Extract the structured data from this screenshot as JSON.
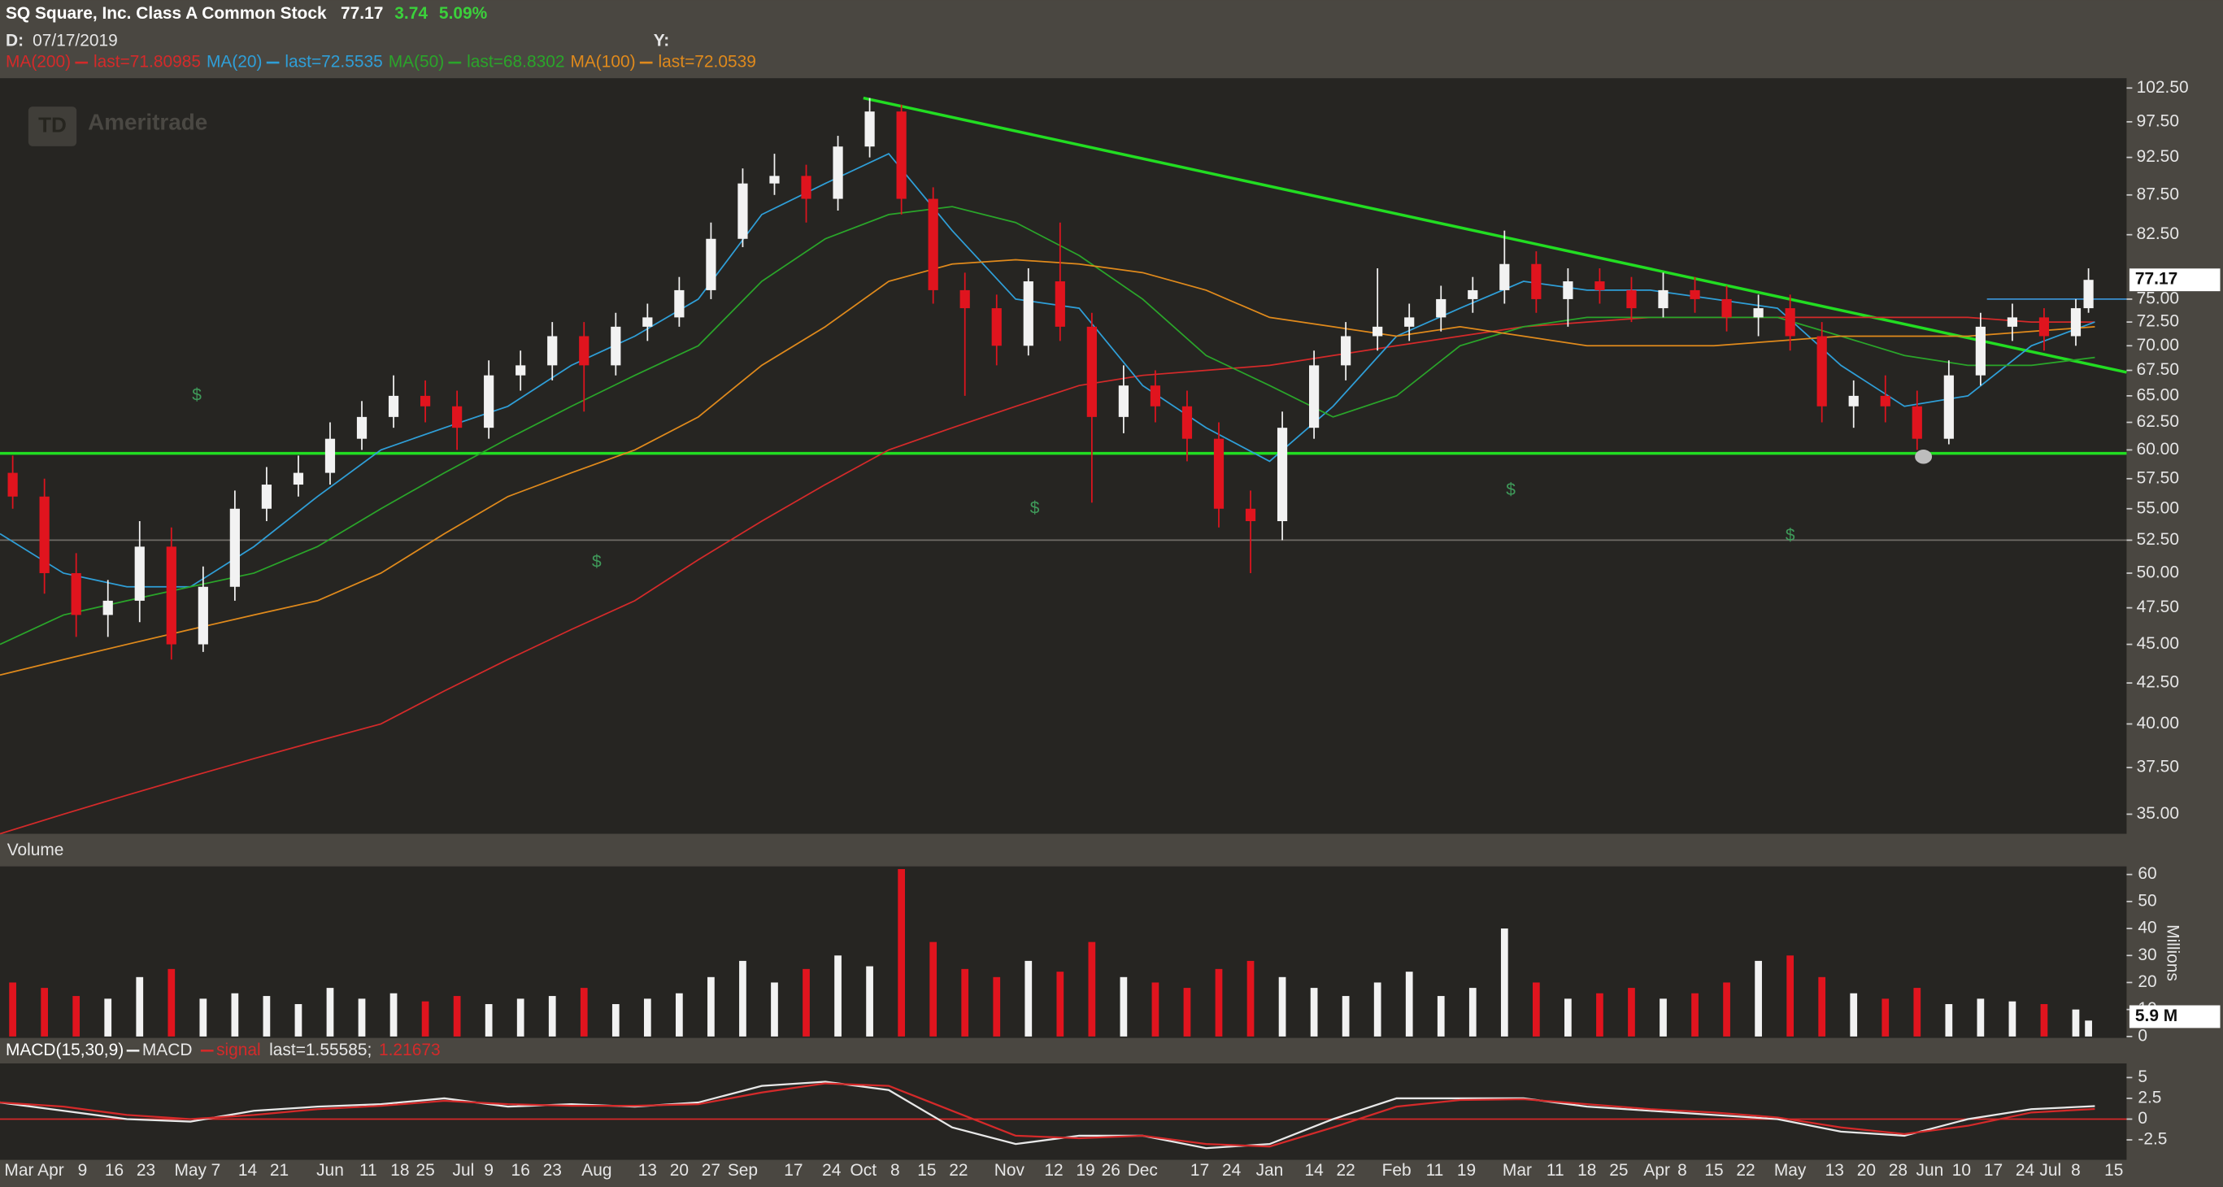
{
  "chart_data": {
    "type": "candlestick",
    "title": "SQ Square, Inc. Class A Common Stock",
    "change": "3.74",
    "change_pct": "5.09%",
    "change_color": "#3bd13b",
    "date_label": "D:",
    "date": "07/17/2019",
    "y_label": "Y:",
    "logo": "TD",
    "watermark": "Ameritrade",
    "log_scale": true,
    "xlim": [
      0,
      335
    ],
    "xticks": [
      {
        "value": 3,
        "label": "Mar"
      },
      {
        "value": 8,
        "label": "Apr"
      },
      {
        "value": 13,
        "label": "9"
      },
      {
        "value": 18,
        "label": "16"
      },
      {
        "value": 23,
        "label": "23"
      },
      {
        "value": 30,
        "label": "May"
      },
      {
        "value": 34,
        "label": "7"
      },
      {
        "value": 39,
        "label": "14"
      },
      {
        "value": 44,
        "label": "21"
      },
      {
        "value": 52,
        "label": "Jun"
      },
      {
        "value": 58,
        "label": "11"
      },
      {
        "value": 63,
        "label": "18"
      },
      {
        "value": 67,
        "label": "25"
      },
      {
        "value": 73,
        "label": "Jul"
      },
      {
        "value": 77,
        "label": "9"
      },
      {
        "value": 82,
        "label": "16"
      },
      {
        "value": 87,
        "label": "23"
      },
      {
        "value": 94,
        "label": "Aug"
      },
      {
        "value": 102,
        "label": "13"
      },
      {
        "value": 107,
        "label": "20"
      },
      {
        "value": 112,
        "label": "27"
      },
      {
        "value": 117,
        "label": "Sep"
      },
      {
        "value": 125,
        "label": "17"
      },
      {
        "value": 131,
        "label": "24"
      },
      {
        "value": 136,
        "label": "Oct"
      },
      {
        "value": 141,
        "label": "8"
      },
      {
        "value": 146,
        "label": "15"
      },
      {
        "value": 151,
        "label": "22"
      },
      {
        "value": 159,
        "label": "Nov"
      },
      {
        "value": 166,
        "label": "12"
      },
      {
        "value": 171,
        "label": "19"
      },
      {
        "value": 175,
        "label": "26"
      },
      {
        "value": 180,
        "label": "Dec"
      },
      {
        "value": 189,
        "label": "17"
      },
      {
        "value": 194,
        "label": "24"
      },
      {
        "value": 200,
        "label": "Jan"
      },
      {
        "value": 207,
        "label": "14"
      },
      {
        "value": 212,
        "label": "22"
      },
      {
        "value": 220,
        "label": "Feb"
      },
      {
        "value": 226,
        "label": "11"
      },
      {
        "value": 231,
        "label": "19"
      },
      {
        "value": 239,
        "label": "Mar"
      },
      {
        "value": 245,
        "label": "11"
      },
      {
        "value": 250,
        "label": "18"
      },
      {
        "value": 255,
        "label": "25"
      },
      {
        "value": 261,
        "label": "Apr"
      },
      {
        "value": 265,
        "label": "8"
      },
      {
        "value": 270,
        "label": "15"
      },
      {
        "value": 275,
        "label": "22"
      },
      {
        "value": 282,
        "label": "May"
      },
      {
        "value": 289,
        "label": "13"
      },
      {
        "value": 294,
        "label": "20"
      },
      {
        "value": 299,
        "label": "28"
      },
      {
        "value": 304,
        "label": "Jun"
      },
      {
        "value": 309,
        "label": "10"
      },
      {
        "value": 314,
        "label": "17"
      },
      {
        "value": 319,
        "label": "24"
      },
      {
        "value": 323,
        "label": "Jul"
      },
      {
        "value": 327,
        "label": "8"
      },
      {
        "value": 333,
        "label": "15"
      }
    ],
    "ylim": [
      34,
      104
    ],
    "yticks": [
      {
        "value": 35,
        "label": "35.00"
      },
      {
        "value": 37.5,
        "label": "37.50"
      },
      {
        "value": 40,
        "label": "40.00"
      },
      {
        "value": 42.5,
        "label": "42.50"
      },
      {
        "value": 45,
        "label": "45.00"
      },
      {
        "value": 47.5,
        "label": "47.50"
      },
      {
        "value": 50,
        "label": "50.00"
      },
      {
        "value": 52.5,
        "label": "52.50"
      },
      {
        "value": 55,
        "label": "55.00"
      },
      {
        "value": 57.5,
        "label": "57.50"
      },
      {
        "value": 60,
        "label": "60.00"
      },
      {
        "value": 62.5,
        "label": "62.50"
      },
      {
        "value": 65,
        "label": "65.00"
      },
      {
        "value": 67.5,
        "label": "67.50"
      },
      {
        "value": 70,
        "label": "70.00"
      },
      {
        "value": 72.5,
        "label": "72.50"
      },
      {
        "value": 75,
        "label": "75.00"
      },
      {
        "value": 82.5,
        "label": "82.50"
      },
      {
        "value": 87.5,
        "label": "87.50"
      },
      {
        "value": 92.5,
        "label": "92.50"
      },
      {
        "value": 97.5,
        "label": "97.50"
      },
      {
        "value": 102.5,
        "label": "102.50"
      }
    ],
    "up_color": "#f2f2f2",
    "down_color": "#e0141e",
    "x": [
      2,
      7,
      12,
      17,
      22,
      27,
      32,
      37,
      42,
      47,
      52,
      57,
      62,
      67,
      72,
      77,
      82,
      87,
      92,
      97,
      102,
      107,
      112,
      117,
      122,
      127,
      132,
      137,
      142,
      147,
      152,
      157,
      162,
      167,
      172,
      177,
      182,
      187,
      192,
      197,
      202,
      207,
      212,
      217,
      222,
      227,
      232,
      237,
      242,
      247,
      252,
      257,
      262,
      267,
      272,
      277,
      282,
      287,
      292,
      297,
      302,
      307,
      312,
      317,
      322,
      327,
      329
    ],
    "open": [
      58,
      56,
      50,
      47,
      48,
      52,
      45,
      49,
      55,
      57,
      58,
      61,
      63,
      65,
      64,
      62,
      67,
      68,
      71,
      68,
      72,
      73,
      76,
      82,
      89,
      90,
      87,
      94,
      99,
      87,
      76,
      74,
      70,
      77,
      72,
      63,
      66,
      64,
      61,
      55,
      54,
      62,
      68,
      71,
      72,
      73,
      75,
      76,
      79,
      75,
      77,
      76,
      74,
      76,
      75,
      73,
      74,
      71,
      64,
      65,
      64,
      61,
      67,
      72,
      73,
      71,
      74
    ],
    "high": [
      59.5,
      57.5,
      51.5,
      49.5,
      54,
      53.5,
      50.5,
      56.5,
      58.5,
      59.5,
      62.5,
      64.5,
      67,
      66.5,
      65.5,
      68.5,
      69.5,
      72.5,
      72.5,
      73.5,
      74.5,
      77.5,
      84,
      91,
      93,
      91.5,
      95.5,
      101,
      100,
      88.5,
      78,
      75.5,
      78.5,
      84,
      73.5,
      68,
      67.5,
      65.5,
      62.5,
      56.5,
      63.5,
      69.5,
      72.5,
      78.5,
      74.5,
      76.5,
      77.5,
      83,
      80.5,
      78.5,
      78.5,
      77.5,
      78,
      77.5,
      76.5,
      75.5,
      75.5,
      72.5,
      66.5,
      67,
      65.5,
      68.5,
      73.5,
      74.5,
      74,
      75,
      78.5
    ],
    "low": [
      55,
      48.5,
      45.5,
      45.5,
      46.5,
      44,
      44.5,
      48,
      54,
      56,
      57,
      60,
      62,
      62.5,
      60,
      61,
      65.5,
      66.5,
      63.5,
      67,
      70.5,
      72,
      75,
      81,
      87.5,
      84,
      85.5,
      92.5,
      85,
      74.5,
      65,
      68,
      69,
      70.5,
      55.5,
      61.5,
      62.5,
      59,
      53.5,
      50,
      52.5,
      61,
      66.5,
      69.5,
      70.5,
      71.5,
      73.5,
      74.5,
      73.5,
      72,
      74.5,
      72.5,
      73,
      73.5,
      71.5,
      71,
      69.5,
      62.5,
      62,
      62.5,
      60,
      60.5,
      66,
      70.5,
      69.5,
      70,
      73.5
    ],
    "close": [
      56,
      50,
      47,
      48,
      52,
      45,
      49,
      55,
      57,
      58,
      61,
      63,
      65,
      64,
      62,
      67,
      68,
      71,
      68,
      72,
      73,
      76,
      82,
      89,
      90,
      87,
      94,
      99,
      87,
      76,
      74,
      70,
      77,
      72,
      63,
      66,
      64,
      61,
      55,
      54,
      62,
      68,
      71,
      72,
      73,
      75,
      76,
      79,
      75,
      77,
      76,
      74,
      76,
      75,
      73,
      74,
      71,
      64,
      65,
      64,
      61,
      67,
      72,
      73,
      71,
      74,
      77.17
    ],
    "overlays": {
      "x": [
        0,
        10,
        20,
        30,
        40,
        50,
        60,
        70,
        80,
        90,
        100,
        110,
        120,
        130,
        140,
        150,
        160,
        170,
        180,
        190,
        200,
        210,
        220,
        230,
        240,
        250,
        260,
        270,
        280,
        290,
        300,
        310,
        320,
        330
      ],
      "series": [
        {
          "name": "MA(200)",
          "last": "last=71.80985",
          "color": "#d42a2a",
          "values": [
            34,
            35,
            36,
            37,
            38,
            39,
            40,
            42,
            44,
            46,
            48,
            51,
            54,
            57,
            60,
            62,
            64,
            66,
            67,
            67.5,
            68,
            69,
            70,
            71,
            72,
            72.5,
            73,
            73,
            73,
            73,
            73,
            73,
            72.5,
            72.5
          ]
        },
        {
          "name": "MA(20)",
          "last": "last=72.5535",
          "color": "#2f9fd8",
          "values": [
            53,
            50,
            49,
            49,
            52,
            56,
            60,
            62,
            64,
            68,
            71,
            75,
            85,
            89,
            93,
            83,
            75,
            74,
            66,
            62,
            59,
            64,
            71,
            74,
            77,
            76,
            76,
            75,
            74,
            68,
            64,
            65,
            70,
            72.5
          ]
        },
        {
          "name": "MA(50)",
          "last": "last=68.8302",
          "color": "#2aa52a",
          "values": [
            45,
            47,
            48,
            49,
            50,
            52,
            55,
            58,
            61,
            64,
            67,
            70,
            77,
            82,
            85,
            86,
            84,
            80,
            75,
            69,
            66,
            63,
            65,
            70,
            72,
            73,
            73,
            73,
            73,
            71,
            69,
            68,
            68,
            68.8
          ]
        },
        {
          "name": "MA(100)",
          "last": "last=72.0539",
          "color": "#e08a1c",
          "values": [
            43,
            44,
            45,
            46,
            47,
            48,
            50,
            53,
            56,
            58,
            60,
            63,
            68,
            72,
            77,
            79,
            79.5,
            79,
            78,
            76,
            73,
            72,
            71,
            72,
            71,
            70,
            70,
            70,
            70.5,
            71,
            71,
            71,
            71.5,
            72
          ]
        }
      ]
    },
    "trendlines": [
      {
        "x": [
          136,
          335
        ],
        "values": [
          101,
          67.3
        ],
        "color": "#22dd22",
        "width": 2
      },
      {
        "x": [
          0,
          335
        ],
        "values": [
          59.7,
          59.7
        ],
        "color": "#22dd22",
        "width": 2
      },
      {
        "x": [
          0,
          335
        ],
        "values": [
          52.5,
          52.5
        ],
        "color": "#6f6c66",
        "width": 1
      },
      {
        "x": [
          313,
          335
        ],
        "values": [
          75,
          75
        ],
        "color": "#3a8fd0",
        "width": 1
      }
    ],
    "events": {
      "label": "$",
      "color": "#3f9a5a",
      "x": [
        31,
        94,
        163,
        238,
        282
      ],
      "values": [
        65,
        50.8,
        55,
        56.5,
        52.8
      ]
    },
    "marker": {
      "x": [
        303
      ],
      "values": [
        59.4
      ],
      "color": "#bdbdbd"
    },
    "volume": {
      "title": "Volume",
      "unit": "Millions",
      "ylim": [
        0,
        63
      ],
      "yticks": [
        0,
        10,
        20,
        30,
        40,
        50,
        60
      ],
      "values": [
        20,
        18,
        15,
        14,
        22,
        25,
        14,
        16,
        15,
        12,
        18,
        14,
        16,
        13,
        15,
        12,
        14,
        15,
        18,
        12,
        14,
        16,
        22,
        28,
        20,
        25,
        30,
        26,
        62,
        35,
        25,
        22,
        28,
        24,
        35,
        22,
        20,
        18,
        25,
        28,
        22,
        18,
        15,
        20,
        24,
        15,
        18,
        40,
        20,
        14,
        16,
        18,
        14,
        16,
        20,
        28,
        30,
        22,
        16,
        14,
        18,
        12,
        14,
        13,
        12,
        10,
        5.9
      ],
      "last_label": "5.9 M"
    },
    "macd": {
      "title": "MACD(15,30,9)",
      "ylim": [
        -4.9,
        6.7
      ],
      "yticks": [
        5,
        2.5,
        0,
        -2.5
      ],
      "zero_color": "#d42a2a",
      "x": [
        0,
        10,
        20,
        30,
        40,
        50,
        60,
        70,
        80,
        90,
        100,
        110,
        120,
        130,
        140,
        150,
        160,
        170,
        180,
        190,
        200,
        210,
        220,
        230,
        240,
        250,
        260,
        270,
        280,
        290,
        300,
        310,
        320,
        330
      ],
      "series": [
        {
          "name": "MACD",
          "last": "last=1.55585;",
          "color": "#e8e8e8",
          "values": [
            2,
            1,
            0,
            -0.3,
            1,
            1.5,
            1.8,
            2.5,
            1.5,
            1.8,
            1.5,
            2,
            4,
            4.5,
            3.5,
            -1,
            -3,
            -2,
            -2,
            -3.5,
            -3,
            0,
            2.5,
            2.5,
            2.5,
            1.5,
            1,
            0.5,
            0,
            -1.5,
            -2,
            0,
            1.2,
            1.56
          ]
        },
        {
          "name": "signal",
          "last": "1.21673",
          "color": "#d42a2a",
          "values": [
            2,
            1.5,
            0.5,
            0,
            0.5,
            1.2,
            1.6,
            2.2,
            1.8,
            1.6,
            1.6,
            1.8,
            3.2,
            4.3,
            4,
            1,
            -2,
            -2.3,
            -2,
            -3,
            -3.3,
            -1,
            1.5,
            2.3,
            2.4,
            1.8,
            1.2,
            0.8,
            0.2,
            -1,
            -1.8,
            -0.8,
            0.8,
            1.22
          ]
        }
      ]
    }
  }
}
